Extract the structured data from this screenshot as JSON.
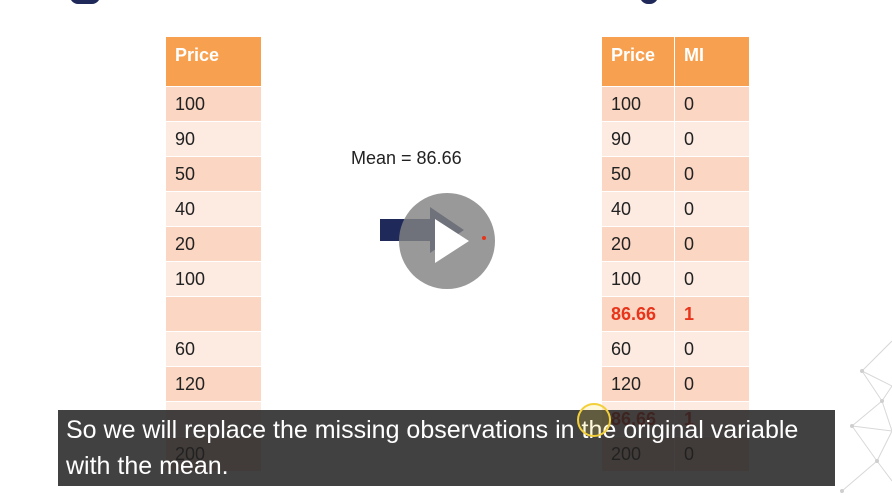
{
  "left_table": {
    "header": "Price",
    "rows": [
      "100",
      "90",
      "50",
      "40",
      "20",
      "100",
      "",
      "60",
      "120",
      "",
      "200"
    ]
  },
  "right_table": {
    "headers": [
      "Price",
      "MI"
    ],
    "rows": [
      [
        "100",
        "0"
      ],
      [
        "90",
        "0"
      ],
      [
        "50",
        "0"
      ],
      [
        "40",
        "0"
      ],
      [
        "20",
        "0"
      ],
      [
        "100",
        "0"
      ],
      [
        "86.66",
        "1"
      ],
      [
        "60",
        "0"
      ],
      [
        "120",
        "0"
      ],
      [
        "86.66",
        "1"
      ],
      [
        "200",
        "0"
      ]
    ],
    "highlight_row_indices": [
      6,
      9
    ]
  },
  "mean_label": "Mean = 86.66",
  "caption": {
    "line1": "So we will replace the missing observations in the original variable",
    "line2": "with the mean."
  },
  "colors": {
    "header": "#f7a150",
    "row_odd": "#fbd7c3",
    "row_even": "#fdebe2",
    "highlight": "#e8341b",
    "arrow": "#1f2a5a"
  },
  "icons": [
    "right-arrow-icon",
    "play-icon"
  ]
}
